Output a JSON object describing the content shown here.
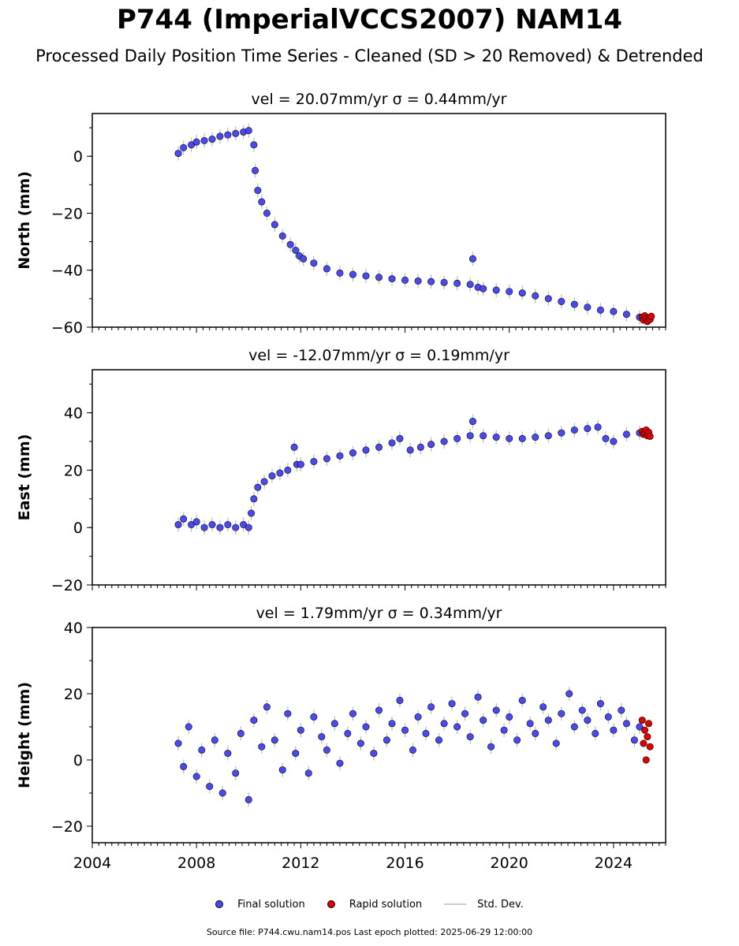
{
  "title": "P744 (ImperialVCCS2007) NAM14",
  "subtitle": "Processed Daily Position Time Series - Cleaned (SD > 20 Removed) & Detrended",
  "legend": {
    "final": "Final solution",
    "rapid": "Rapid solution",
    "std": "Std. Dev."
  },
  "footer": "Source file: P744.cwu.nam14.pos  Last epoch plotted: 2025-06-29 12:00:00",
  "colors": {
    "final": "#4a4af0",
    "rapid": "#e00000",
    "std": "#bbbbbb",
    "edge": "#000000"
  },
  "chart_data": [
    {
      "type": "scatter",
      "panel_title": "vel = 20.07mm/yr   σ = 0.44mm/yr",
      "ylabel": "North (mm)",
      "xlim": [
        2004,
        2026
      ],
      "ylim": [
        -60,
        15
      ],
      "yticks": [
        0,
        -20,
        -40,
        -60
      ],
      "ytick_labels": [
        "0",
        "−20",
        "−40",
        "−60"
      ],
      "x": [
        2007.3,
        2007.5,
        2007.8,
        2008.0,
        2008.3,
        2008.6,
        2008.9,
        2009.2,
        2009.5,
        2009.8,
        2010.0,
        2010.2,
        2010.25,
        2010.35,
        2010.5,
        2010.7,
        2011.0,
        2011.3,
        2011.6,
        2011.8,
        2011.95,
        2012.1,
        2012.5,
        2013.0,
        2013.5,
        2014.0,
        2014.5,
        2015.0,
        2015.5,
        2016.0,
        2016.5,
        2017.0,
        2017.5,
        2018.0,
        2018.5,
        2018.6,
        2018.8,
        2019.0,
        2019.5,
        2020.0,
        2020.5,
        2021.0,
        2021.5,
        2022.0,
        2022.5,
        2023.0,
        2023.5,
        2024.0,
        2024.5,
        2025.0
      ],
      "series": [
        {
          "values": [
            1,
            3,
            4,
            5,
            5.5,
            6,
            7,
            7.5,
            8,
            8.5,
            9,
            4,
            -5,
            -12,
            -16,
            -20,
            -24,
            -28,
            -31,
            -33,
            -35,
            -36,
            -37.5,
            -39.5,
            -41,
            -41.5,
            -42,
            -42.5,
            -43,
            -43.5,
            -43.8,
            -44,
            -44.3,
            -44.6,
            -45,
            -36,
            -46,
            -46.5,
            -47,
            -47.5,
            -48,
            -49,
            -50,
            -51,
            -52,
            -53,
            -54,
            -54.5,
            -55.5,
            -56.5
          ]
        },
        {
          "name": "rapid",
          "x": [
            2025.1,
            2025.15,
            2025.2,
            2025.25,
            2025.3,
            2025.35,
            2025.4,
            2025.45
          ],
          "values": [
            -56.5,
            -57.5,
            -56,
            -57,
            -58,
            -56.8,
            -57.3,
            -56.2
          ]
        }
      ]
    },
    {
      "type": "scatter",
      "panel_title": "vel = -12.07mm/yr   σ = 0.19mm/yr",
      "ylabel": "East (mm)",
      "xlim": [
        2004,
        2026
      ],
      "ylim": [
        -20,
        55
      ],
      "yticks": [
        40,
        20,
        0,
        -20
      ],
      "ytick_labels": [
        "40",
        "20",
        "0",
        "−20"
      ],
      "x": [
        2007.3,
        2007.5,
        2007.8,
        2008.0,
        2008.3,
        2008.6,
        2008.9,
        2009.2,
        2009.5,
        2009.8,
        2010.0,
        2010.1,
        2010.2,
        2010.35,
        2010.6,
        2010.9,
        2011.2,
        2011.5,
        2011.75,
        2011.85,
        2012.0,
        2012.5,
        2013.0,
        2013.5,
        2014.0,
        2014.5,
        2015.0,
        2015.5,
        2015.8,
        2016.2,
        2016.6,
        2017.0,
        2017.5,
        2018.0,
        2018.5,
        2018.6,
        2019.0,
        2019.5,
        2020.0,
        2020.5,
        2021.0,
        2021.5,
        2022.0,
        2022.5,
        2023.0,
        2023.4,
        2023.7,
        2024.0,
        2024.5,
        2025.0
      ],
      "series": [
        {
          "values": [
            1,
            3,
            1,
            2,
            0,
            1,
            0,
            1,
            0,
            1,
            0,
            5,
            10,
            14,
            16,
            18,
            19,
            20,
            28,
            22,
            22,
            23,
            24,
            25,
            26,
            27,
            28,
            29.5,
            31,
            27,
            28,
            29,
            30,
            31,
            32,
            37,
            32,
            31.5,
            31,
            31,
            31.5,
            32,
            33,
            34,
            34.5,
            35,
            31,
            30,
            32.5,
            33
          ]
        },
        {
          "name": "rapid",
          "x": [
            2025.1,
            2025.15,
            2025.2,
            2025.25,
            2025.3,
            2025.35,
            2025.4
          ],
          "values": [
            33.5,
            32.5,
            33,
            34,
            32,
            33.2,
            31.8
          ]
        }
      ]
    },
    {
      "type": "scatter",
      "panel_title": "vel = 1.79mm/yr   σ = 0.34mm/yr",
      "ylabel": "Height (mm)",
      "xlim": [
        2004,
        2026
      ],
      "ylim": [
        -25,
        40
      ],
      "yticks": [
        40,
        20,
        0,
        -20
      ],
      "ytick_labels": [
        "40",
        "20",
        "0",
        "−20"
      ],
      "xticks": [
        2004,
        2008,
        2012,
        2016,
        2020,
        2024
      ],
      "x": [
        2007.3,
        2007.5,
        2007.7,
        2008.0,
        2008.2,
        2008.5,
        2008.7,
        2009.0,
        2009.2,
        2009.5,
        2009.7,
        2010.0,
        2010.2,
        2010.5,
        2010.7,
        2011.0,
        2011.3,
        2011.5,
        2011.8,
        2012.0,
        2012.3,
        2012.5,
        2012.8,
        2013.0,
        2013.3,
        2013.5,
        2013.8,
        2014.0,
        2014.3,
        2014.5,
        2014.8,
        2015.0,
        2015.3,
        2015.5,
        2015.8,
        2016.0,
        2016.3,
        2016.5,
        2016.8,
        2017.0,
        2017.3,
        2017.5,
        2017.8,
        2018.0,
        2018.3,
        2018.5,
        2018.8,
        2019.0,
        2019.3,
        2019.5,
        2019.8,
        2020.0,
        2020.3,
        2020.5,
        2020.8,
        2021.0,
        2021.3,
        2021.5,
        2021.8,
        2022.0,
        2022.3,
        2022.5,
        2022.8,
        2023.0,
        2023.3,
        2023.5,
        2023.8,
        2024.0,
        2024.3,
        2024.5,
        2024.8,
        2025.0
      ],
      "series": [
        {
          "values": [
            5,
            -2,
            10,
            -5,
            3,
            -8,
            6,
            -10,
            2,
            -4,
            8,
            -12,
            12,
            4,
            16,
            6,
            -3,
            14,
            2,
            9,
            -4,
            13,
            7,
            3,
            11,
            -1,
            8,
            14,
            5,
            10,
            2,
            15,
            6,
            11,
            18,
            9,
            3,
            13,
            8,
            16,
            6,
            11,
            17,
            10,
            14,
            7,
            19,
            12,
            4,
            15,
            9,
            13,
            6,
            18,
            11,
            8,
            16,
            12,
            5,
            14,
            20,
            10,
            15,
            12,
            8,
            17,
            13,
            9,
            15,
            11,
            6,
            10
          ]
        },
        {
          "name": "rapid",
          "x": [
            2025.1,
            2025.15,
            2025.2,
            2025.25,
            2025.3,
            2025.35,
            2025.4
          ],
          "values": [
            12,
            5,
            9,
            0,
            7,
            11,
            4
          ]
        }
      ]
    }
  ]
}
